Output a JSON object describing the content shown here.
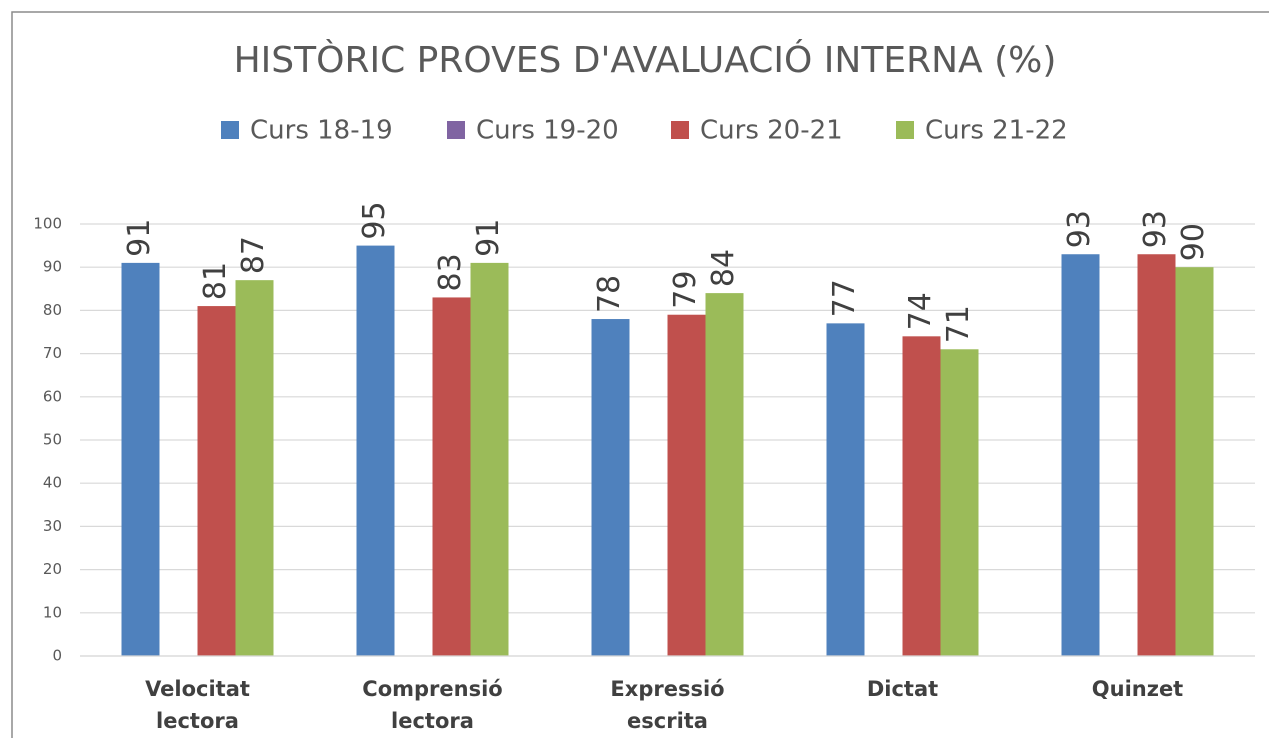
{
  "chart_data": {
    "type": "bar",
    "title": "HISTÒRIC PROVES D'AVALUACIÓ INTERNA (%)",
    "categories": [
      "Velocitat lectora",
      "Comprensió lectora",
      "Expressió escrita",
      "Dictat",
      "Quinzet"
    ],
    "series": [
      {
        "name": "Curs 18-19",
        "color": "#4f81bd",
        "values": [
          91,
          95,
          78,
          77,
          93
        ]
      },
      {
        "name": "Curs 19-20",
        "color": "#8064a2",
        "values": [
          null,
          null,
          null,
          null,
          null
        ]
      },
      {
        "name": "Curs 20-21",
        "color": "#c0504d",
        "values": [
          81,
          83,
          79,
          74,
          93
        ]
      },
      {
        "name": "Curs 21-22",
        "color": "#9bbb59",
        "values": [
          87,
          91,
          84,
          71,
          90
        ]
      }
    ],
    "ylim": [
      0,
      100
    ],
    "yticks": [
      0,
      10,
      20,
      30,
      40,
      50,
      60,
      70,
      80,
      90,
      100
    ],
    "grid": true,
    "legend": "top"
  }
}
